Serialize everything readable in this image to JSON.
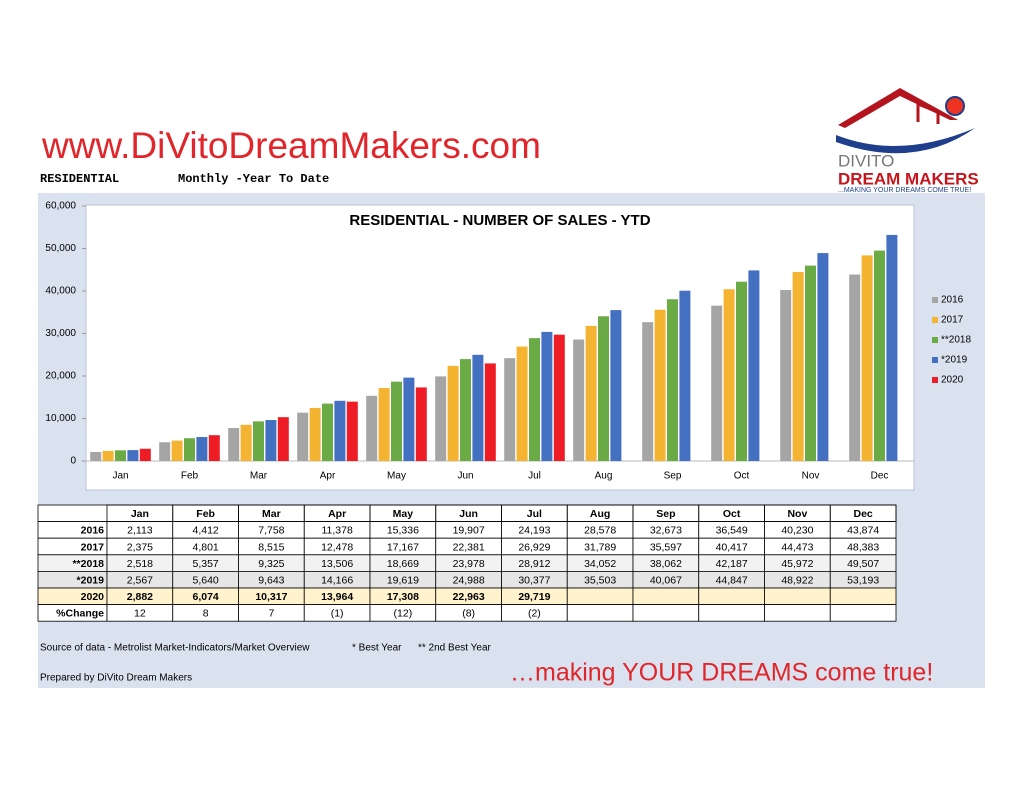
{
  "header": {
    "website": "www.DiVitoDreamMakers.com",
    "section": "RESIDENTIAL",
    "period": "Monthly -Year To Date",
    "logo": {
      "name": "DIVITO",
      "brand": "DREAM MAKERS",
      "tagline": "...MAKING YOUR DREAMS COME TRUE!"
    }
  },
  "chart_data": {
    "type": "bar",
    "title": "RESIDENTIAL  - NUMBER  OF  SALES - YTD",
    "categories": [
      "Jan",
      "Feb",
      "Mar",
      "Apr",
      "May",
      "Jun",
      "Jul",
      "Aug",
      "Sep",
      "Oct",
      "Nov",
      "Dec"
    ],
    "series": [
      {
        "name": "2016",
        "color": "#a5a5a5",
        "values": [
          2113,
          4412,
          7758,
          11378,
          15336,
          19907,
          24193,
          28578,
          32673,
          36549,
          40230,
          43874
        ]
      },
      {
        "name": "2017",
        "color": "#f4b431",
        "values": [
          2375,
          4801,
          8515,
          12478,
          17167,
          22381,
          26929,
          31789,
          35597,
          40417,
          44473,
          48383
        ]
      },
      {
        "name": "**2018",
        "color": "#6aab46",
        "values": [
          2518,
          5357,
          9325,
          13506,
          18669,
          23978,
          28912,
          34052,
          38062,
          42187,
          45972,
          49507
        ]
      },
      {
        "name": "*2019",
        "color": "#4470c2",
        "values": [
          2567,
          5640,
          9643,
          14166,
          19619,
          24988,
          30377,
          35503,
          40067,
          44847,
          48922,
          53193
        ]
      },
      {
        "name": "2020",
        "color": "#ee1c25",
        "values": [
          2882,
          6074,
          10317,
          13964,
          17308,
          22963,
          29719,
          null,
          null,
          null,
          null,
          null
        ]
      }
    ],
    "ylim": [
      0,
      60000
    ],
    "yticks": [
      0,
      {
        "value": 10000,
        "label": "10,000"
      },
      {
        "value": 20000,
        "label": "20,000"
      },
      {
        "value": 30000,
        "label": "30,000"
      },
      {
        "value": 40000,
        "label": "40,000"
      },
      {
        "value": 50000,
        "label": "50,000"
      },
      {
        "value": 60000,
        "label": "60,000"
      }
    ],
    "legend": "right"
  },
  "table": {
    "columns": [
      "Jan",
      "Feb",
      "Mar",
      "Apr",
      "May",
      "Jun",
      "Jul",
      "Aug",
      "Sep",
      "Oct",
      "Nov",
      "Dec"
    ],
    "rows": [
      [
        "2016",
        "2,113",
        "4,412",
        "7,758",
        "11,378",
        "15,336",
        "19,907",
        "24,193",
        "28,578",
        "32,673",
        "36,549",
        "40,230",
        "43,874"
      ],
      [
        "2017",
        "2,375",
        "4,801",
        "8,515",
        "12,478",
        "17,167",
        "22,381",
        "26,929",
        "31,789",
        "35,597",
        "40,417",
        "44,473",
        "48,383"
      ],
      [
        "**2018",
        "2,518",
        "5,357",
        "9,325",
        "13,506",
        "18,669",
        "23,978",
        "28,912",
        "34,052",
        "38,062",
        "42,187",
        "45,972",
        "49,507"
      ],
      [
        "*2019",
        "2,567",
        "5,640",
        "9,643",
        "14,166",
        "19,619",
        "24,988",
        "30,377",
        "35,503",
        "40,067",
        "44,847",
        "48,922",
        "53,193"
      ],
      [
        "2020",
        "2,882",
        "6,074",
        "10,317",
        "13,964",
        "17,308",
        "22,963",
        "29,719"
      ],
      [
        "%Change",
        "12",
        "8",
        "7",
        "(1)",
        "(12)",
        "(8)",
        "(2)"
      ]
    ]
  },
  "footer": {
    "source": "Source of data - Metrolist Market-Indicators/Market Overview",
    "best": "* Best Year",
    "second": "** 2nd Best Year",
    "prepared": "Prepared by DiVito Dream Makers",
    "slogan": "…making YOUR DREAMS come true!"
  }
}
